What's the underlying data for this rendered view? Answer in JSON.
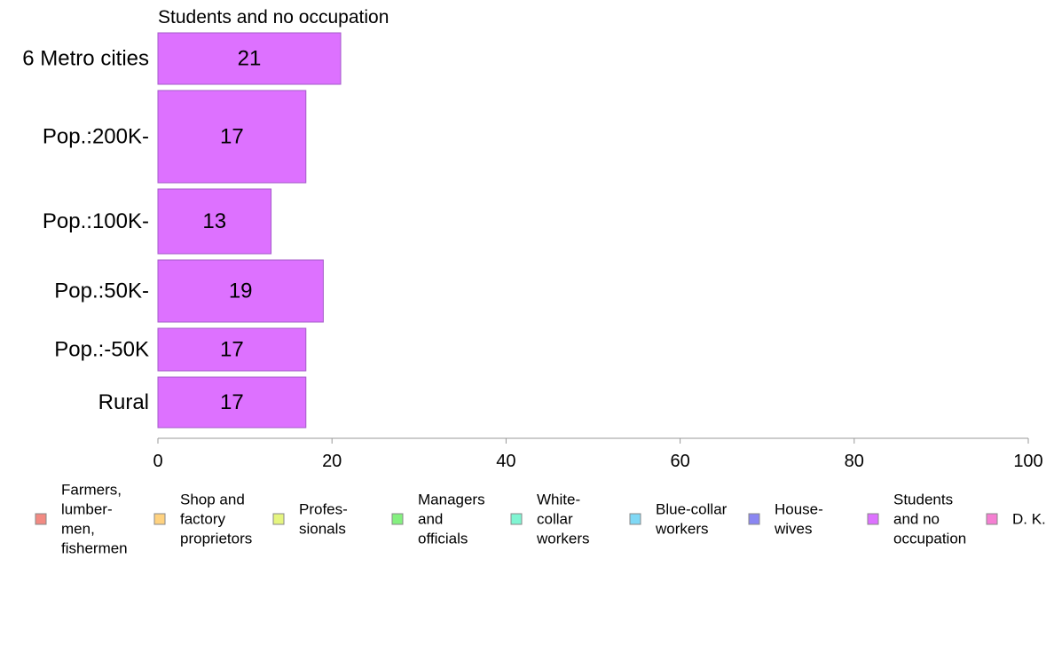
{
  "chart_data": {
    "type": "bar",
    "orientation": "horizontal",
    "title": "Students and no occupation",
    "xlabel": "",
    "ylabel": "",
    "categories": [
      "6 Metro cities",
      "Pop.:200K-",
      "Pop.:100K-",
      "Pop.:50K-",
      "Pop.:-50K",
      "Rural"
    ],
    "values": [
      21,
      17,
      13,
      19,
      17,
      17
    ],
    "data_labels": [
      "21",
      "17",
      "13",
      "19",
      "17",
      "17"
    ],
    "xlim": [
      0,
      100
    ],
    "xticks": [
      0,
      20,
      40,
      60,
      80,
      100
    ],
    "grid": false,
    "bar_color": "#DD71FF",
    "bar_edge_color": "#A45CC8",
    "legend": {
      "placement": "bottom",
      "entries": [
        {
          "label": "Farmers, lumber- men, fishermen",
          "lines": [
            "Farmers,",
            "lumber-",
            "men,",
            "fishermen"
          ],
          "color": "#F28A82"
        },
        {
          "label": "Shop and factory proprietors",
          "lines": [
            "Shop and",
            "factory",
            "proprietors"
          ],
          "color": "#FFD27F"
        },
        {
          "label": "Profes- sionals",
          "lines": [
            "Profes-",
            "sionals"
          ],
          "color": "#E5F57F"
        },
        {
          "label": "Managers and officials",
          "lines": [
            "Managers",
            "and",
            "officials"
          ],
          "color": "#84F07F"
        },
        {
          "label": "White- collar workers",
          "lines": [
            "White-",
            "collar",
            "workers"
          ],
          "color": "#7FF5D2"
        },
        {
          "label": "Blue-collar workers",
          "lines": [
            "Blue-collar",
            "workers"
          ],
          "color": "#7FD8F5"
        },
        {
          "label": "House- wives",
          "lines": [
            "House-",
            "wives"
          ],
          "color": "#8A86F2"
        },
        {
          "label": "Students and no occupation",
          "lines": [
            "Students",
            "and no",
            "occupation"
          ],
          "color": "#DD71FF"
        },
        {
          "label": "D. K.",
          "lines": [
            "D. K."
          ],
          "color": "#F57FD2"
        }
      ]
    }
  }
}
